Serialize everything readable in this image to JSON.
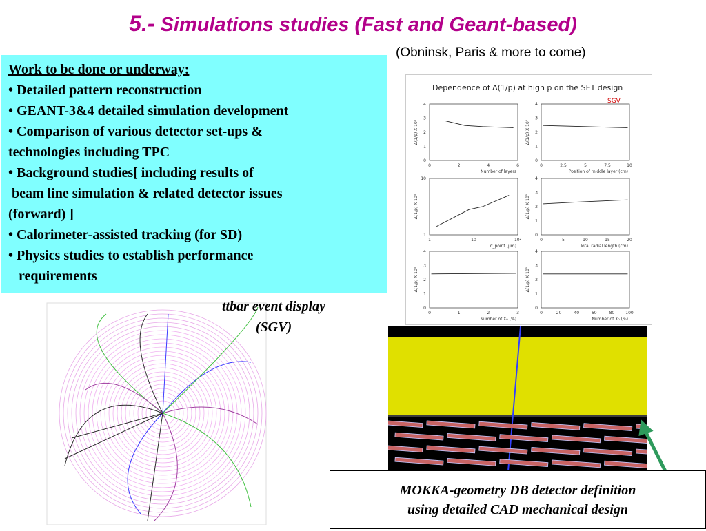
{
  "title": {
    "number": "5.-",
    "text": " Simulations studies  (Fast and Geant-based)"
  },
  "subtitle": "(Obninsk, Paris & more to come)",
  "work": {
    "heading": "Work to be done or underway:",
    "lines": [
      "• Detailed pattern reconstruction",
      "• GEANT-3&4 detailed simulation development",
      "• Comparison of various detector set-ups &",
      "technologies including TPC",
      "• Background studies[ including results of",
      " beam line simulation & related detector issues",
      "(forward) ]",
      "• Calorimeter-assisted tracking (for SD)",
      "• Physics studies to establish performance",
      "   requirements"
    ]
  },
  "ttbar_caption": {
    "line1": "ttbar event display",
    "line2": "(SGV)"
  },
  "mokka_caption": {
    "line1": "MOKKA-geometry DB detector definition",
    "line2": "using  detailed CAD mechanical design"
  },
  "plots": {
    "title": "Dependence of Δ(1/p) at high p on the SET design",
    "tag": "SGV",
    "ylabel": "Δ(1/p) X 10⁵",
    "panels": [
      {
        "xlabel": "Number of layers",
        "xticks": [
          "0",
          "2",
          "4",
          "6"
        ],
        "yticks": [
          "0",
          "1",
          "2",
          "3",
          "4"
        ]
      },
      {
        "xlabel": "Position of middle layer (cm)",
        "xticks": [
          "0",
          "2.5",
          "5",
          "7.5",
          "10"
        ],
        "yticks": [
          "0",
          "1",
          "2",
          "3",
          "4"
        ]
      },
      {
        "xlabel": "σ_point (μm)",
        "xticks": [
          "1",
          "10",
          "10²"
        ],
        "yticks": [
          "1",
          "10"
        ]
      },
      {
        "xlabel": "Total radial length (cm)",
        "xticks": [
          "0",
          "5",
          "10",
          "15",
          "20"
        ],
        "yticks": [
          "0",
          "1",
          "2",
          "3",
          "4"
        ]
      },
      {
        "xlabel": "Number of X₀ (%)",
        "xticks": [
          "0",
          "1",
          "2",
          "3"
        ],
        "yticks": [
          "0",
          "1",
          "2",
          "3",
          "4"
        ]
      },
      {
        "xlabel": "Number of X₀ (%)",
        "xticks": [
          "0",
          "20",
          "40",
          "60",
          "80",
          "100"
        ],
        "yticks": [
          "0",
          "1",
          "2",
          "3",
          "4"
        ]
      }
    ]
  },
  "colors": {
    "title": "#b3008a",
    "workbox": "#80ffff",
    "arrow": "#2e9a5c",
    "detector_yellow": "#e0e000"
  }
}
